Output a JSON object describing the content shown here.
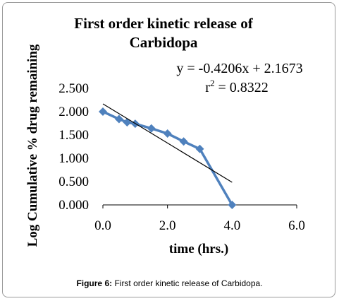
{
  "chart_data": {
    "type": "line",
    "title_lines": [
      "First order kinetic release of",
      "Carbidopa"
    ],
    "xlabel": "time (hrs.)",
    "ylabel": "Log Cumulative % drug remaining",
    "x_ticks": [
      "0.0",
      "2.0",
      "4.0",
      "6.0"
    ],
    "y_ticks": [
      "0.000",
      "0.500",
      "1.000",
      "1.500",
      "2.000",
      "2.500"
    ],
    "xlim": [
      0,
      6
    ],
    "ylim": [
      0,
      2.5
    ],
    "series": [
      {
        "color": "#4f81bd",
        "marker": "diamond",
        "points": [
          {
            "x": 0,
            "y": 2.0
          },
          {
            "x": 0.5,
            "y": 1.84
          },
          {
            "x": 0.75,
            "y": 1.77
          },
          {
            "x": 1.0,
            "y": 1.74
          },
          {
            "x": 1.5,
            "y": 1.64
          },
          {
            "x": 2.0,
            "y": 1.53
          },
          {
            "x": 2.5,
            "y": 1.36
          },
          {
            "x": 3.0,
            "y": 1.2
          },
          {
            "x": 4.0,
            "y": 0.0
          }
        ]
      }
    ],
    "trendline": {
      "type": "linear",
      "slope": -0.4206,
      "intercept": 2.1673,
      "x_range": [
        0,
        4.0
      ],
      "color": "#000000",
      "equation": "y = -0.4206x + 2.1673",
      "r2_prefix": "r",
      "r2_exp": "2",
      "r2_value": " = 0.8322"
    }
  },
  "caption": {
    "label": "Figure 6:",
    "text": " First order kinetic release of Carbidopa."
  }
}
